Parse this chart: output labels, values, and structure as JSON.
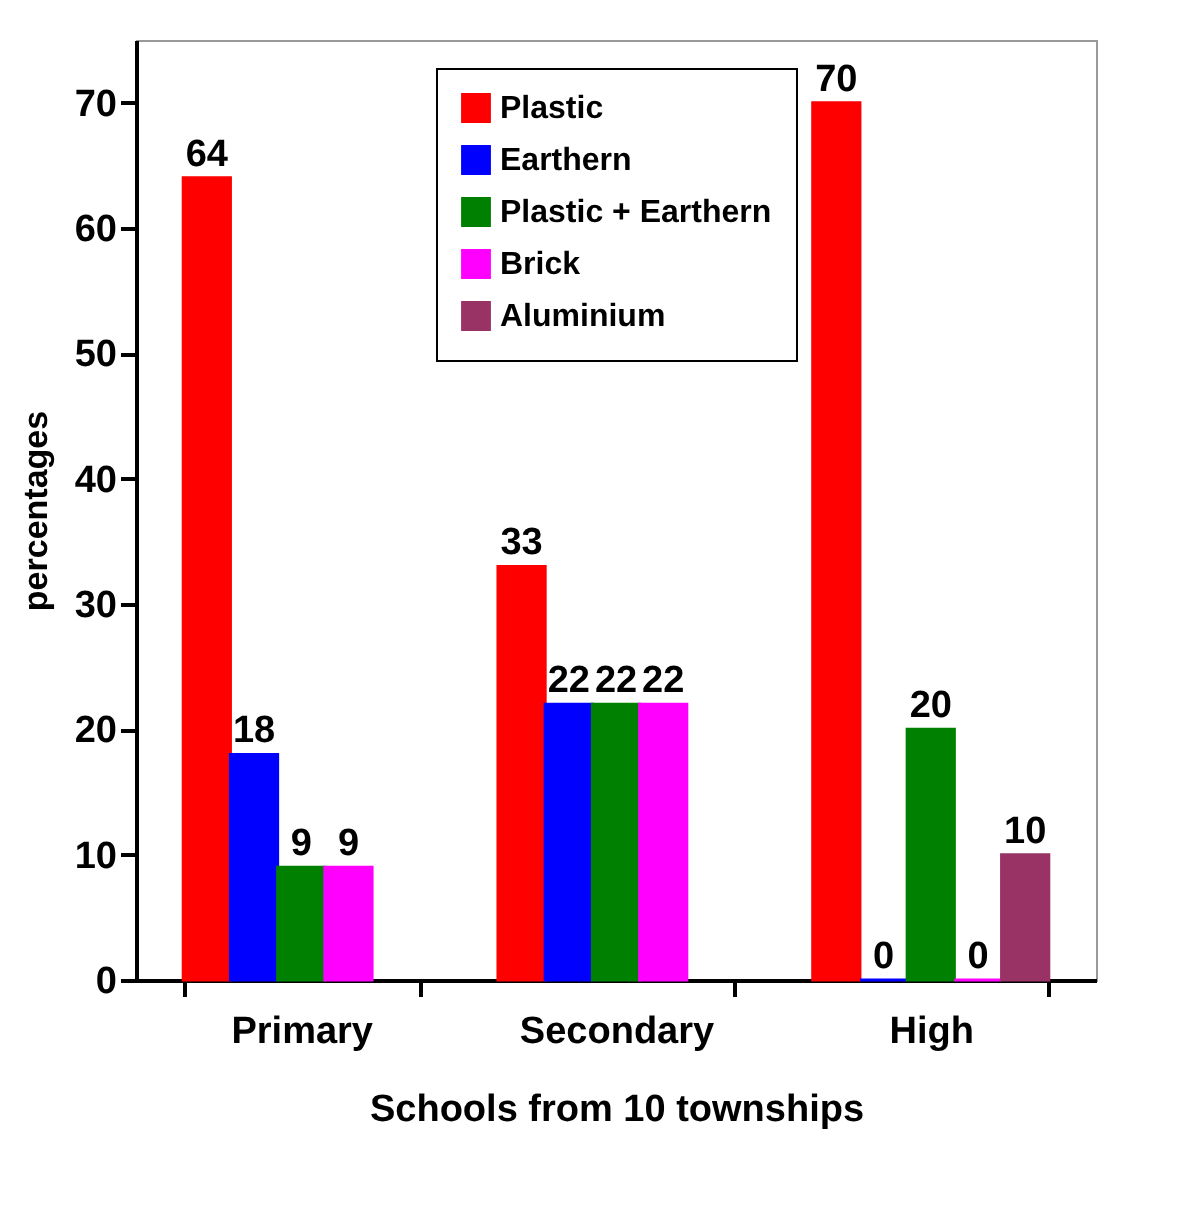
{
  "chart_data": {
    "type": "bar",
    "xlabel": "Schools from 10 townships",
    "ylabel": "percentages",
    "categories": [
      "Primary",
      "Secondary",
      "High"
    ],
    "series": [
      {
        "name": "Plastic",
        "color": "#ff0000",
        "values": [
          64,
          33,
          70
        ]
      },
      {
        "name": "Earthern",
        "color": "#0000ff",
        "values": [
          18,
          22,
          0
        ]
      },
      {
        "name": "Plastic + Earthern",
        "color": "#008000",
        "values": [
          9,
          22,
          20
        ]
      },
      {
        "name": "Brick",
        "color": "#ff00ff",
        "values": [
          9,
          22,
          0
        ]
      },
      {
        "name": "Aluminium",
        "color": "#993366",
        "values": [
          null,
          null,
          10
        ]
      }
    ],
    "ylim": [
      0,
      75
    ],
    "yticks": [
      0,
      10,
      20,
      30,
      40,
      50,
      60,
      70
    ],
    "data_labels": true,
    "legend": "top",
    "grid": false
  }
}
